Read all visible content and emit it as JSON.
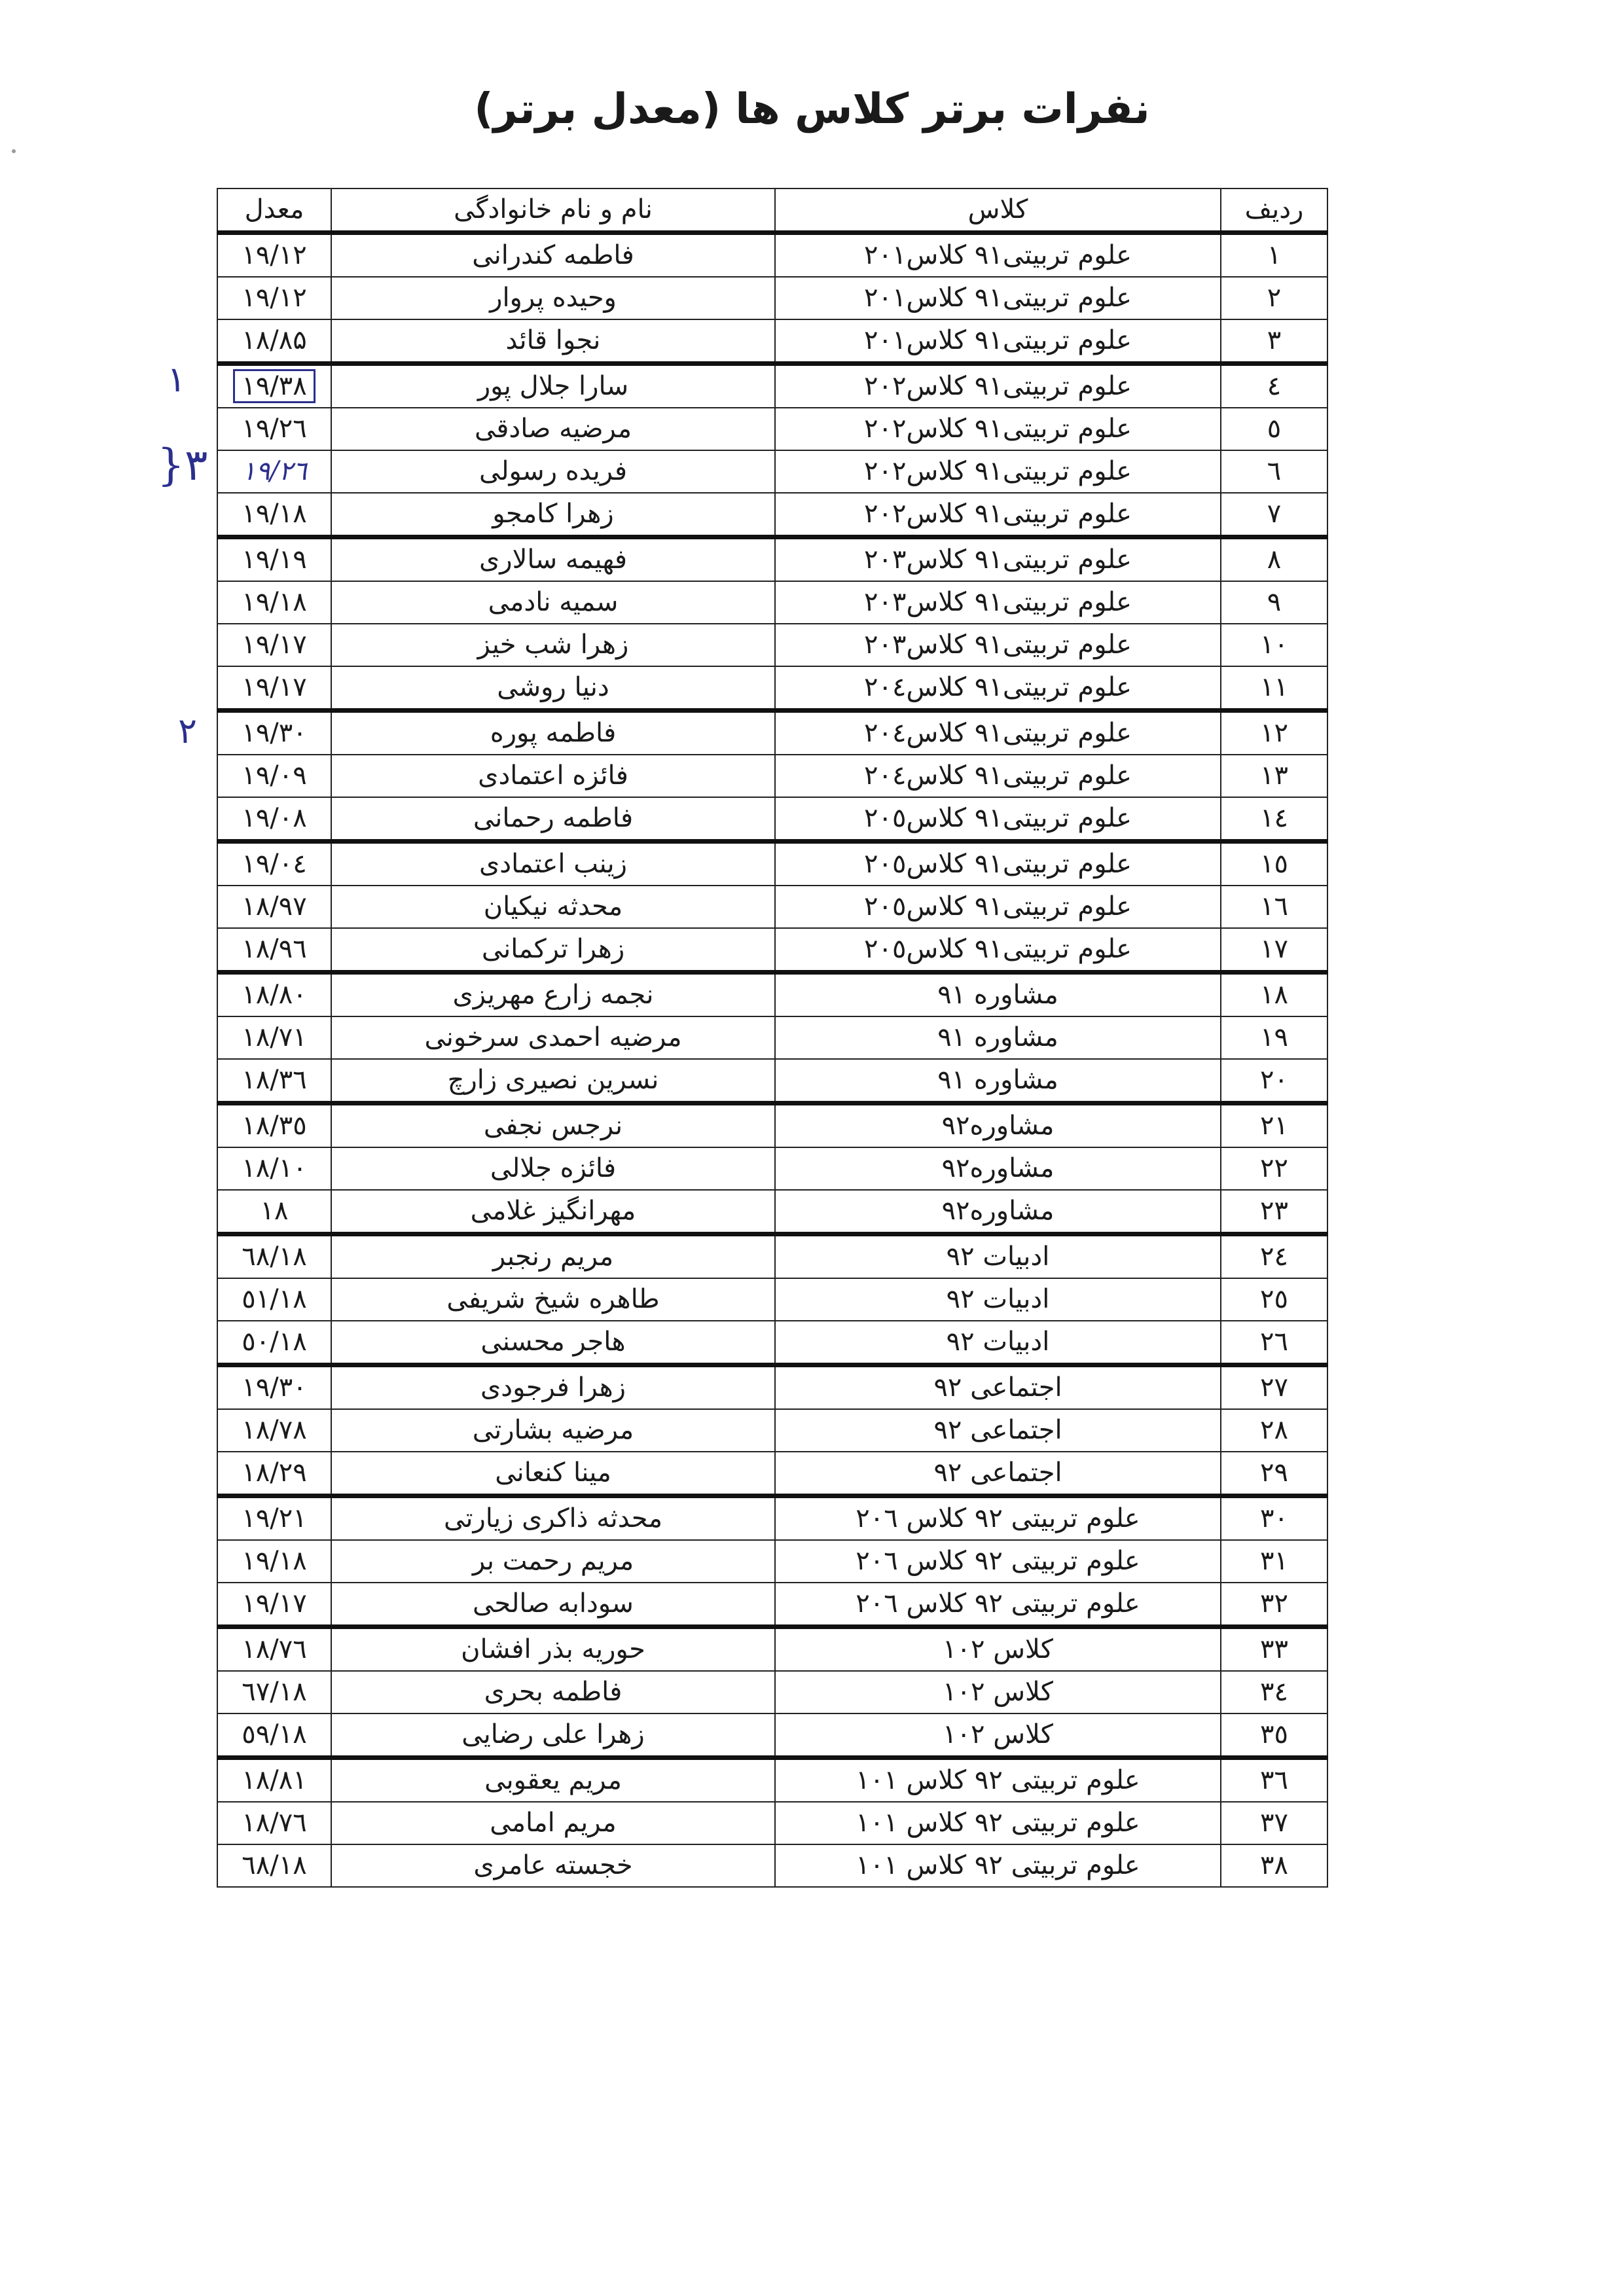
{
  "title": "نفرات برتر کلاس ها (معدل برتر)",
  "headers": {
    "row": "ردیف",
    "class": "کلاس",
    "name": "نام و نام خانوادگی",
    "avg": "معدل"
  },
  "rows": [
    {
      "n": "۱",
      "cls": "علوم تربیتی۹۱ کلاس۲۰۱",
      "name": "فاطمه کندرانی",
      "avg": "۱۹/۱۲"
    },
    {
      "n": "۲",
      "cls": "علوم تربیتی۹۱ کلاس۲۰۱",
      "name": "وحیده پروار",
      "avg": "۱۹/۱۲"
    },
    {
      "n": "۳",
      "cls": "علوم تربیتی۹۱ کلاس۲۰۱",
      "name": "نجوا قائد",
      "avg": "۱۸/۸۵"
    },
    {
      "n": "٤",
      "cls": "علوم تربیتی۹۱ کلاس۲۰۲",
      "name": "سارا جلال پور",
      "avg": "۱۹/۳۸"
    },
    {
      "n": "٥",
      "cls": "علوم تربیتی۹۱ کلاس۲۰۲",
      "name": "مرضیه صادقی",
      "avg": "۱۹/۲٦"
    },
    {
      "n": "٦",
      "cls": "علوم تربیتی۹۱ کلاس۲۰۲",
      "name": "فریده رسولی",
      "avg": "۱۹/۲٦"
    },
    {
      "n": "۷",
      "cls": "علوم تربیتی۹۱ کلاس۲۰۲",
      "name": "زهرا کامجو",
      "avg": "۱۹/۱۸"
    },
    {
      "n": "۸",
      "cls": "علوم تربیتی۹۱ کلاس۲۰۳",
      "name": "فهیمه سالاری",
      "avg": "۱۹/۱۹"
    },
    {
      "n": "۹",
      "cls": "علوم تربیتی۹۱ کلاس۲۰۳",
      "name": "سمیه نادمی",
      "avg": "۱۹/۱۸"
    },
    {
      "n": "۱۰",
      "cls": "علوم تربیتی۹۱ کلاس۲۰۳",
      "name": "زهرا شب خیز",
      "avg": "۱۹/۱۷"
    },
    {
      "n": "۱۱",
      "cls": "علوم تربیتی۹۱ کلاس۲۰٤",
      "name": "دنیا روشی",
      "avg": "۱۹/۱۷"
    },
    {
      "n": "۱۲",
      "cls": "علوم تربیتی۹۱ کلاس۲۰٤",
      "name": "فاطمه پوره",
      "avg": "۱۹/۳۰"
    },
    {
      "n": "۱۳",
      "cls": "علوم تربیتی۹۱ کلاس۲۰٤",
      "name": "فائزه اعتمادی",
      "avg": "۱۹/۰۹"
    },
    {
      "n": "۱٤",
      "cls": "علوم تربیتی۹۱ کلاس۲۰٥",
      "name": "فاطمه رحمانی",
      "avg": "۱۹/۰۸"
    },
    {
      "n": "۱٥",
      "cls": "علوم تربیتی۹۱ کلاس۲۰٥",
      "name": "زینب اعتمادی",
      "avg": "۱۹/۰٤"
    },
    {
      "n": "۱٦",
      "cls": "علوم تربیتی۹۱ کلاس۲۰٥",
      "name": "محدثه نیکیان",
      "avg": "۱۸/۹۷"
    },
    {
      "n": "۱۷",
      "cls": "علوم تربیتی۹۱ کلاس۲۰٥",
      "name": "زهرا ترکمانی",
      "avg": "۱۸/۹٦"
    },
    {
      "n": "۱۸",
      "cls": "مشاوره ۹۱",
      "name": "نجمه زارع مهریزی",
      "avg": "۱۸/۸۰"
    },
    {
      "n": "۱۹",
      "cls": "مشاوره ۹۱",
      "name": "مرضیه احمدی سرخونی",
      "avg": "۱۸/۷۱"
    },
    {
      "n": "۲۰",
      "cls": "مشاوره ۹۱",
      "name": "نسرین نصیری زارچ",
      "avg": "۱۸/۳٦"
    },
    {
      "n": "۲۱",
      "cls": "مشاوره۹۲",
      "name": "نرجس نجفی",
      "avg": "۱۸/۳٥"
    },
    {
      "n": "۲۲",
      "cls": "مشاوره۹۲",
      "name": "فائزه جلالی",
      "avg": "۱۸/۱۰"
    },
    {
      "n": "۲۳",
      "cls": "مشاوره۹۲",
      "name": "مهرانگیز غلامی",
      "avg": "۱۸"
    },
    {
      "n": "۲٤",
      "cls": "ادبیات ۹۲",
      "name": "مریم رنجبر",
      "avg": "۱۸/٦۸"
    },
    {
      "n": "۲٥",
      "cls": "ادبیات ۹۲",
      "name": "طاهره شیخ شریفی",
      "avg": "۱۸/٥۱"
    },
    {
      "n": "۲٦",
      "cls": "ادبیات ۹۲",
      "name": "هاجر محسنی",
      "avg": "۱۸/٥۰"
    },
    {
      "n": "۲۷",
      "cls": "اجتماعی ۹۲",
      "name": "زهرا فرجودی",
      "avg": "۱۹/۳۰"
    },
    {
      "n": "۲۸",
      "cls": "اجتماعی ۹۲",
      "name": "مرضیه بشارتی",
      "avg": "۱۸/۷۸"
    },
    {
      "n": "۲۹",
      "cls": "اجتماعی ۹۲",
      "name": "مینا کنعانی",
      "avg": "۱۸/۲۹"
    },
    {
      "n": "۳۰",
      "cls": "علوم تربیتی ۹۲ کلاس ۲۰٦",
      "name": "محدثه ذاکری زیارتی",
      "avg": "۱۹/۲۱"
    },
    {
      "n": "۳۱",
      "cls": "علوم تربیتی ۹۲ کلاس ۲۰٦",
      "name": "مریم رحمت بر",
      "avg": "۱۹/۱۸"
    },
    {
      "n": "۳۲",
      "cls": "علوم تربیتی ۹۲ کلاس ۲۰٦",
      "name": "سودابه صالحی",
      "avg": "۱۹/۱۷"
    },
    {
      "n": "۳۳",
      "cls": "کلاس ۱۰۲",
      "name": "حوریه بذر افشان",
      "avg": "۱۸/۷٦"
    },
    {
      "n": "۳٤",
      "cls": "کلاس ۱۰۲",
      "name": "فاطمه بحری",
      "avg": "۱۸/٦۷"
    },
    {
      "n": "۳٥",
      "cls": "کلاس ۱۰۲",
      "name": "زهرا علی رضایی",
      "avg": "۱۸/٥۹"
    },
    {
      "n": "۳٦",
      "cls": "علوم تربیتی ۹۲ کلاس ۱۰۱",
      "name": "مریم یعقوبی",
      "avg": "۱۸/۸۱"
    },
    {
      "n": "۳۷",
      "cls": "علوم تربیتی ۹۲ کلاس ۱۰۱",
      "name": "مریم امامی",
      "avg": "۱۸/۷٦"
    },
    {
      "n": "۳۸",
      "cls": "علوم تربیتی ۹۲ کلاس ۱۰۱",
      "name": "خجسته عامری",
      "avg": "۱۸/٦۸"
    }
  ],
  "annotations": {
    "first": "۱",
    "second": "۲",
    "third": "۳{",
    "ink_color": "#2b2f8c"
  }
}
